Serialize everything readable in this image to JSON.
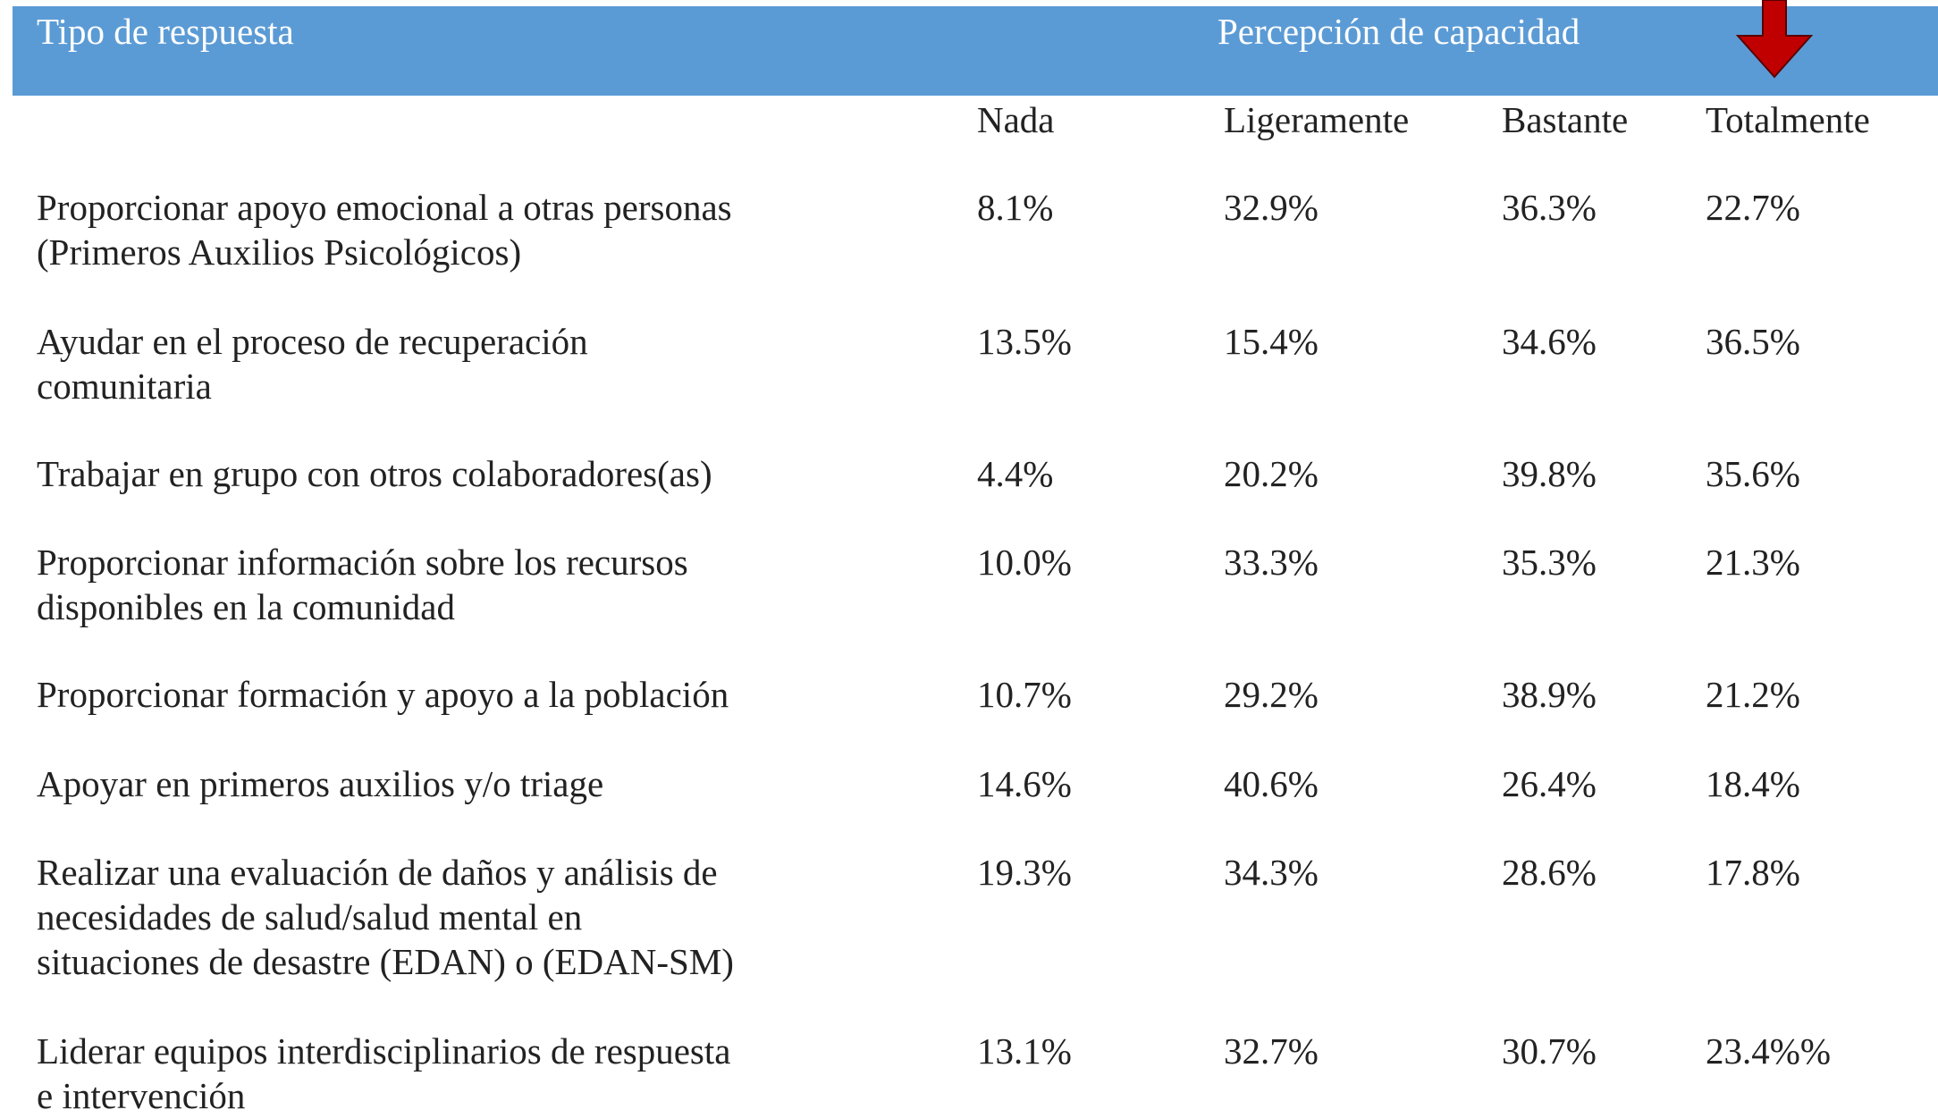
{
  "header": {
    "left": "Tipo de respuesta",
    "right": "Percepción de capacidad"
  },
  "table": {
    "columns": [
      "Nada",
      "Ligeramente",
      "Bastante",
      "Totalmente"
    ],
    "rows": [
      {
        "label": [
          "Proporcionar apoyo emocional a otras personas",
          "(Primeros Auxilios Psicológicos)"
        ],
        "values": [
          "8.1%",
          "32.9%",
          "36.3%",
          "22.7%"
        ]
      },
      {
        "label": [
          "Ayudar en el proceso de recuperación",
          "comunitaria"
        ],
        "values": [
          "13.5%",
          "15.4%",
          "34.6%",
          "36.5%"
        ]
      },
      {
        "label": [
          "Trabajar en grupo con otros colaboradores(as)"
        ],
        "values": [
          "4.4%",
          "20.2%",
          "39.8%",
          "35.6%"
        ]
      },
      {
        "label": [
          "Proporcionar información sobre los recursos",
          "disponibles en la comunidad"
        ],
        "values": [
          "10.0%",
          "33.3%",
          "35.3%",
          "21.3%"
        ]
      },
      {
        "label": [
          "Proporcionar formación y apoyo a la población"
        ],
        "values": [
          "10.7%",
          "29.2%",
          "38.9%",
          "21.2%"
        ]
      },
      {
        "label": [
          "Apoyar en primeros auxilios y/o triage"
        ],
        "values": [
          "14.6%",
          "40.6%",
          "26.4%",
          "18.4%"
        ]
      },
      {
        "label": [
          "Realizar una evaluación de daños y análisis de",
          "necesidades de salud/salud mental en",
          "situaciones de desastre (EDAN) o (EDAN-SM)"
        ],
        "values": [
          "19.3%",
          "34.3%",
          "28.6%",
          "17.8%"
        ]
      },
      {
        "label": [
          "Liderar equipos interdisciplinarios de respuesta",
          "e intervención"
        ],
        "values": [
          "13.1%",
          "32.7%",
          "30.7%",
          "23.4%%"
        ]
      }
    ]
  }
}
